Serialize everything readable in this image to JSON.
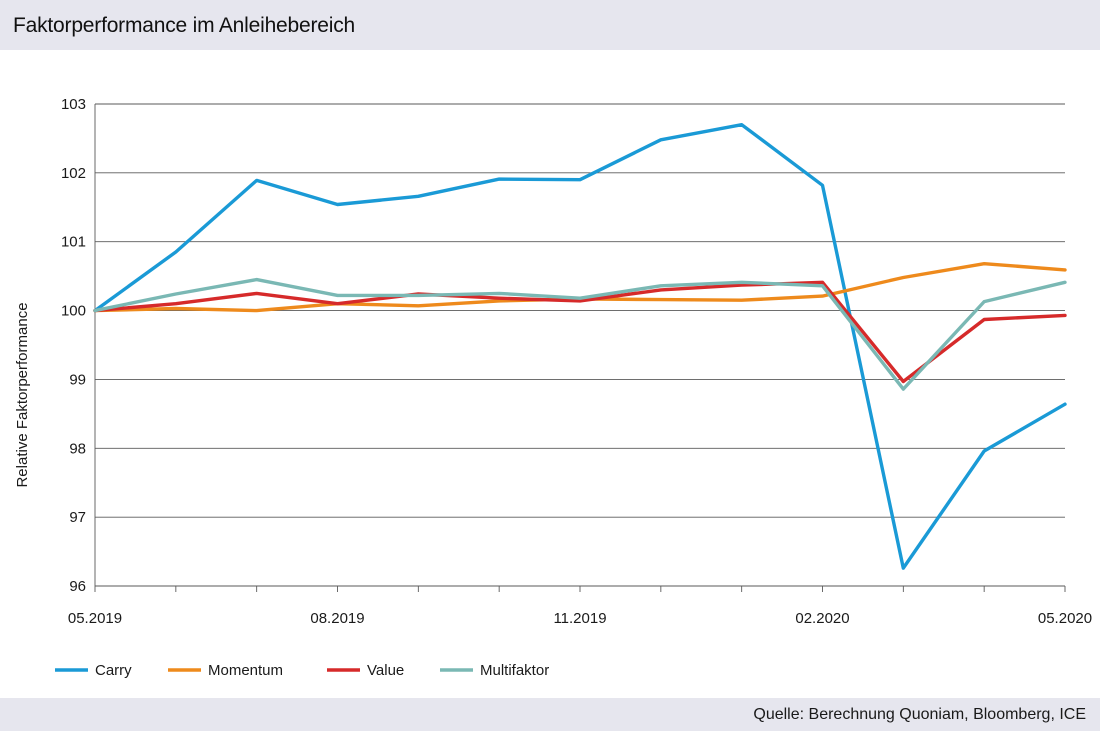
{
  "title": "Faktorperformance im Anleihebereich",
  "source": "Quelle: Berechnung Quoniam, Bloomberg, ICE",
  "chart_data": {
    "type": "line",
    "ylabel": "Relative Faktorperformance",
    "xlabel": "",
    "ylim": [
      96,
      103
    ],
    "yticks": [
      96,
      97,
      98,
      99,
      100,
      101,
      102,
      103
    ],
    "x_tick_labels": [
      "05.2019",
      "08.2019",
      "11.2019",
      "02.2020",
      "05.2020"
    ],
    "x_tick_label_indices": [
      0,
      3,
      6,
      9,
      12
    ],
    "x_count": 13,
    "grid": true,
    "legend_position": "bottom-left",
    "series": [
      {
        "name": "Carry",
        "color": "#1a9ad6",
        "values": [
          100.0,
          100.85,
          101.89,
          101.54,
          101.66,
          101.91,
          101.9,
          102.48,
          102.7,
          101.82,
          96.26,
          97.96,
          98.64
        ]
      },
      {
        "name": "Momentum",
        "color": "#ee8a1c",
        "values": [
          100.0,
          100.03,
          100.0,
          100.1,
          100.07,
          100.14,
          100.17,
          100.16,
          100.15,
          100.21,
          100.48,
          100.68,
          100.59
        ]
      },
      {
        "name": "Value",
        "color": "#d62a2a",
        "values": [
          100.0,
          100.1,
          100.25,
          100.1,
          100.24,
          100.18,
          100.14,
          100.3,
          100.37,
          100.41,
          98.97,
          99.87,
          99.93
        ]
      },
      {
        "name": "Multifaktor",
        "color": "#7ab8b4",
        "values": [
          100.0,
          100.24,
          100.45,
          100.22,
          100.22,
          100.25,
          100.18,
          100.36,
          100.41,
          100.36,
          98.86,
          100.13,
          100.41
        ]
      }
    ]
  }
}
